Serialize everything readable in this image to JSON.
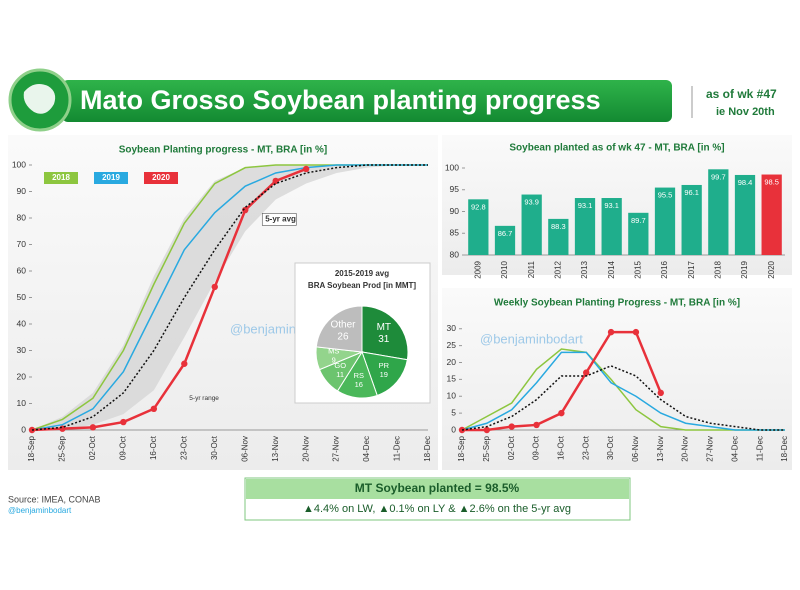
{
  "header": {
    "title": "Mato Grosso Soybean planting progress",
    "as_of": "as of wk #47",
    "date": "ie Nov 20th"
  },
  "chart_data": [
    {
      "type": "line",
      "title": "Soybean Planting progress - MT, BRA [in %]",
      "categories": [
        "18-Sep",
        "25-Sep",
        "02-Oct",
        "09-Oct",
        "16-Oct",
        "23-Oct",
        "30-Oct",
        "06-Nov",
        "13-Nov",
        "20-Nov",
        "27-Nov",
        "04-Dec",
        "11-Dec",
        "18-Dec"
      ],
      "ylim": [
        0,
        100
      ],
      "yticks": [
        0,
        10,
        20,
        30,
        40,
        50,
        60,
        70,
        80,
        90,
        100
      ],
      "legend": "upper left",
      "band": {
        "name": "5-yr range",
        "color": "#d6d6d6",
        "low": [
          0,
          0,
          2,
          6,
          15,
          35,
          56,
          75,
          87,
          93,
          97,
          99,
          100,
          100
        ],
        "high": [
          0,
          5,
          14,
          32,
          58,
          80,
          94,
          99,
          100,
          100,
          100,
          100,
          100,
          100
        ]
      },
      "series": [
        {
          "name": "2018",
          "color": "#8dc63f",
          "values": [
            0,
            4,
            12,
            30,
            55,
            78,
            93,
            99,
            100,
            100,
            100,
            100,
            100,
            100
          ]
        },
        {
          "name": "2019",
          "color": "#29a9e0",
          "values": [
            0,
            2,
            8,
            22,
            45,
            68,
            82,
            92,
            97,
            99,
            100,
            100,
            100,
            100
          ]
        },
        {
          "name": "2020",
          "color": "#e8313a",
          "marker": true,
          "values": [
            0,
            0.5,
            1,
            3,
            8,
            25,
            54,
            83,
            94,
            98.5,
            null,
            null,
            null,
            null
          ]
        },
        {
          "name": "5-yr avg",
          "color": "#111111",
          "style": "dotted",
          "values": [
            0,
            1,
            5,
            14,
            30,
            50,
            68,
            84,
            93,
            97,
            99,
            100,
            100,
            100
          ]
        }
      ]
    },
    {
      "type": "bar",
      "title": "Soybean planted as of wk 47 - MT, BRA [in %]",
      "categories": [
        "2009",
        "2010",
        "2011",
        "2012",
        "2013",
        "2014",
        "2015",
        "2016",
        "2017",
        "2018",
        "2019",
        "2020"
      ],
      "values": [
        92.8,
        86.7,
        93.9,
        88.3,
        93.1,
        93.1,
        89.7,
        95.5,
        96.1,
        99.7,
        98.4,
        98.5
      ],
      "colors": [
        "#1fae8c",
        "#1fae8c",
        "#1fae8c",
        "#1fae8c",
        "#1fae8c",
        "#1fae8c",
        "#1fae8c",
        "#1fae8c",
        "#1fae8c",
        "#1fae8c",
        "#1fae8c",
        "#e8313a"
      ],
      "ylim": [
        80,
        100
      ],
      "yticks": [
        80,
        85,
        90,
        95,
        100
      ]
    },
    {
      "type": "line",
      "title": "Weekly Soybean Planting Progress - MT, BRA [in %]",
      "categories": [
        "18-Sep",
        "25-Sep",
        "02-Oct",
        "09-Oct",
        "16-Oct",
        "23-Oct",
        "30-Oct",
        "06-Nov",
        "13-Nov",
        "20-Nov",
        "27-Nov",
        "04-Dec",
        "11-Dec",
        "18-Dec"
      ],
      "ylim": [
        0,
        32
      ],
      "yticks": [
        0,
        5,
        10,
        15,
        20,
        25,
        30
      ],
      "series": [
        {
          "color": "#8dc63f",
          "values": [
            0,
            4,
            8,
            18,
            24,
            23,
            15,
            6,
            1,
            0,
            0,
            0,
            0,
            0
          ]
        },
        {
          "color": "#29a9e0",
          "values": [
            0,
            2,
            6,
            14,
            23,
            23,
            14,
            10,
            5,
            2,
            1,
            0,
            0,
            0
          ]
        },
        {
          "color": "#e8313a",
          "marker": true,
          "values": [
            0,
            0,
            1,
            1.5,
            5,
            17,
            29,
            29,
            11,
            null,
            null,
            null,
            null,
            null
          ]
        },
        {
          "color": "#111111",
          "style": "dotted",
          "values": [
            0,
            1,
            4,
            9,
            16,
            16,
            19,
            16,
            9,
            4,
            2,
            1,
            0,
            0
          ]
        }
      ]
    },
    {
      "type": "pie",
      "title": "2015-2019 avg",
      "subtitle": "BRA Soybean Prod [in MMT]",
      "labels": [
        "MT",
        "PR",
        "RS",
        "GO",
        "MS",
        "Other"
      ],
      "values": [
        31,
        19,
        16,
        11,
        9,
        26
      ],
      "colors": [
        "#1e8b3a",
        "#2fa64a",
        "#4bb85a",
        "#6cc46e",
        "#93d48c",
        "#bdbdbd"
      ]
    }
  ],
  "summary": {
    "headline": "MT Soybean planted = 98.5%",
    "detail": "▲4.4% on LW,  ▲0.1% on LY & ▲2.6% on the 5-yr avg"
  },
  "source": "Source: IMEA, CONAB",
  "handle": "@benjaminbodart",
  "watermark": "@benjaminbodart"
}
